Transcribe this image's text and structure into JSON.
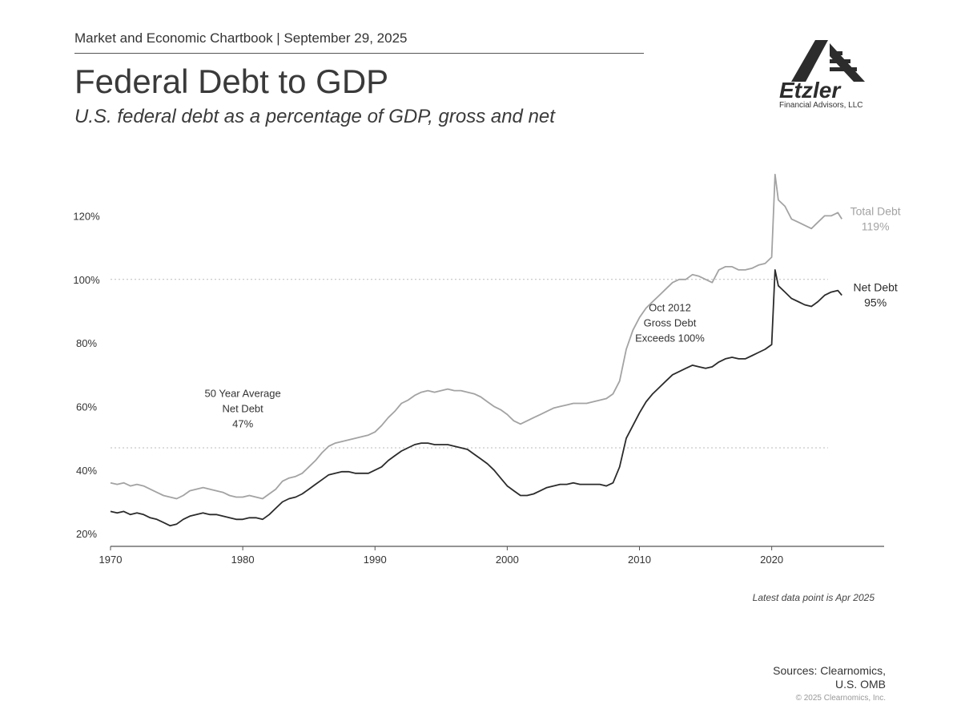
{
  "header": {
    "chartbook": "Market and Economic Chartbook | September 29, 2025",
    "title": "Federal Debt to GDP",
    "subtitle": "U.S. federal debt as a percentage of GDP, gross and net"
  },
  "logo": {
    "name": "Etzler",
    "sub": "Financial Advisors, LLC"
  },
  "footer": {
    "latest": "Latest data point is Apr 2025",
    "sources_line1": "Sources: Clearnomics,",
    "sources_line2": "U.S. OMB",
    "copyright": "© 2025 Clearnomics, Inc."
  },
  "colors": {
    "total": "#a3a3a3",
    "net": "#2b2b2b",
    "axis": "#555555",
    "ref": "#bbbbbb",
    "text": "#333333"
  },
  "chart_data": {
    "type": "line",
    "title": "Federal Debt to GDP",
    "xlim": [
      1970,
      2028.5
    ],
    "ylim": [
      16,
      138
    ],
    "x_ticks": [
      1970,
      1980,
      1990,
      2000,
      2010,
      2020
    ],
    "x_tick_labels": [
      "1970",
      "1980",
      "1990",
      "2000",
      "2010",
      "2020"
    ],
    "y_ticks": [
      20,
      40,
      60,
      80,
      100,
      120
    ],
    "y_tick_labels": [
      "20%",
      "40%",
      "60%",
      "80%",
      "100%",
      "120%"
    ],
    "reference_lines": [
      {
        "value": 100,
        "name": "100% reference"
      },
      {
        "value": 47,
        "name": "50 year average net debt"
      }
    ],
    "series": [
      {
        "name": "Total Debt",
        "color": "#a3a3a3",
        "label": "Total Debt",
        "value_label": "119%",
        "points": [
          [
            1970,
            36
          ],
          [
            1970.5,
            35.5
          ],
          [
            1971,
            36
          ],
          [
            1971.5,
            35
          ],
          [
            1972,
            35.5
          ],
          [
            1972.5,
            35
          ],
          [
            1973,
            34
          ],
          [
            1973.5,
            33
          ],
          [
            1974,
            32
          ],
          [
            1974.5,
            31.5
          ],
          [
            1975,
            31
          ],
          [
            1975.5,
            32
          ],
          [
            1976,
            33.5
          ],
          [
            1976.5,
            34
          ],
          [
            1977,
            34.5
          ],
          [
            1977.5,
            34
          ],
          [
            1978,
            33.5
          ],
          [
            1978.5,
            33
          ],
          [
            1979,
            32
          ],
          [
            1979.5,
            31.5
          ],
          [
            1980,
            31.5
          ],
          [
            1980.5,
            32
          ],
          [
            1981,
            31.5
          ],
          [
            1981.5,
            31
          ],
          [
            1982,
            32.5
          ],
          [
            1982.5,
            34
          ],
          [
            1983,
            36.5
          ],
          [
            1983.5,
            37.5
          ],
          [
            1984,
            38
          ],
          [
            1984.5,
            39
          ],
          [
            1985,
            41
          ],
          [
            1985.5,
            43
          ],
          [
            1986,
            45.5
          ],
          [
            1986.5,
            47.5
          ],
          [
            1987,
            48.5
          ],
          [
            1987.5,
            49
          ],
          [
            1988,
            49.5
          ],
          [
            1988.5,
            50
          ],
          [
            1989,
            50.5
          ],
          [
            1989.5,
            51
          ],
          [
            1990,
            52
          ],
          [
            1990.5,
            54
          ],
          [
            1991,
            56.5
          ],
          [
            1991.5,
            58.5
          ],
          [
            1992,
            61
          ],
          [
            1992.5,
            62
          ],
          [
            1993,
            63.5
          ],
          [
            1993.5,
            64.5
          ],
          [
            1994,
            65
          ],
          [
            1994.5,
            64.5
          ],
          [
            1995,
            65
          ],
          [
            1995.5,
            65.5
          ],
          [
            1996,
            65
          ],
          [
            1996.5,
            65
          ],
          [
            1997,
            64.5
          ],
          [
            1997.5,
            64
          ],
          [
            1998,
            63
          ],
          [
            1998.5,
            61.5
          ],
          [
            1999,
            60
          ],
          [
            1999.5,
            59
          ],
          [
            2000,
            57.5
          ],
          [
            2000.5,
            55.5
          ],
          [
            2001,
            54.5
          ],
          [
            2001.5,
            55.5
          ],
          [
            2002,
            56.5
          ],
          [
            2002.5,
            57.5
          ],
          [
            2003,
            58.5
          ],
          [
            2003.5,
            59.5
          ],
          [
            2004,
            60
          ],
          [
            2004.5,
            60.5
          ],
          [
            2005,
            61
          ],
          [
            2005.5,
            61
          ],
          [
            2006,
            61
          ],
          [
            2006.5,
            61.5
          ],
          [
            2007,
            62
          ],
          [
            2007.5,
            62.5
          ],
          [
            2008,
            64
          ],
          [
            2008.5,
            68
          ],
          [
            2009,
            78
          ],
          [
            2009.5,
            84
          ],
          [
            2010,
            88
          ],
          [
            2010.5,
            91
          ],
          [
            2011,
            93
          ],
          [
            2011.5,
            95
          ],
          [
            2012,
            97
          ],
          [
            2012.5,
            99
          ],
          [
            2013,
            100
          ],
          [
            2013.5,
            100
          ],
          [
            2014,
            101.5
          ],
          [
            2014.5,
            101
          ],
          [
            2015,
            100
          ],
          [
            2015.5,
            99
          ],
          [
            2016,
            103
          ],
          [
            2016.5,
            104
          ],
          [
            2017,
            104
          ],
          [
            2017.5,
            103
          ],
          [
            2018,
            103
          ],
          [
            2018.5,
            103.5
          ],
          [
            2019,
            104.5
          ],
          [
            2019.5,
            105
          ],
          [
            2020,
            107
          ],
          [
            2020.25,
            133
          ],
          [
            2020.5,
            125
          ],
          [
            2021,
            123
          ],
          [
            2021.5,
            119
          ],
          [
            2022,
            118
          ],
          [
            2022.5,
            117
          ],
          [
            2023,
            116
          ],
          [
            2023.5,
            118
          ],
          [
            2024,
            120
          ],
          [
            2024.5,
            120
          ],
          [
            2025,
            121
          ],
          [
            2025.3,
            119
          ]
        ]
      },
      {
        "name": "Net Debt",
        "color": "#2b2b2b",
        "label": "Net Debt",
        "value_label": "95%",
        "points": [
          [
            1970,
            27
          ],
          [
            1970.5,
            26.5
          ],
          [
            1971,
            27
          ],
          [
            1971.5,
            26
          ],
          [
            1972,
            26.5
          ],
          [
            1972.5,
            26
          ],
          [
            1973,
            25
          ],
          [
            1973.5,
            24.5
          ],
          [
            1974,
            23.5
          ],
          [
            1974.5,
            22.5
          ],
          [
            1975,
            23
          ],
          [
            1975.5,
            24.5
          ],
          [
            1976,
            25.5
          ],
          [
            1976.5,
            26
          ],
          [
            1977,
            26.5
          ],
          [
            1977.5,
            26
          ],
          [
            1978,
            26
          ],
          [
            1978.5,
            25.5
          ],
          [
            1979,
            25
          ],
          [
            1979.5,
            24.5
          ],
          [
            1980,
            24.5
          ],
          [
            1980.5,
            25
          ],
          [
            1981,
            25
          ],
          [
            1981.5,
            24.5
          ],
          [
            1982,
            26
          ],
          [
            1982.5,
            28
          ],
          [
            1983,
            30
          ],
          [
            1983.5,
            31
          ],
          [
            1984,
            31.5
          ],
          [
            1984.5,
            32.5
          ],
          [
            1985,
            34
          ],
          [
            1985.5,
            35.5
          ],
          [
            1986,
            37
          ],
          [
            1986.5,
            38.5
          ],
          [
            1987,
            39
          ],
          [
            1987.5,
            39.5
          ],
          [
            1988,
            39.5
          ],
          [
            1988.5,
            39
          ],
          [
            1989,
            39
          ],
          [
            1989.5,
            39
          ],
          [
            1990,
            40
          ],
          [
            1990.5,
            41
          ],
          [
            1991,
            43
          ],
          [
            1991.5,
            44.5
          ],
          [
            1992,
            46
          ],
          [
            1992.5,
            47
          ],
          [
            1993,
            48
          ],
          [
            1993.5,
            48.5
          ],
          [
            1994,
            48.5
          ],
          [
            1994.5,
            48
          ],
          [
            1995,
            48
          ],
          [
            1995.5,
            48
          ],
          [
            1996,
            47.5
          ],
          [
            1996.5,
            47
          ],
          [
            1997,
            46.5
          ],
          [
            1997.5,
            45
          ],
          [
            1998,
            43.5
          ],
          [
            1998.5,
            42
          ],
          [
            1999,
            40
          ],
          [
            1999.5,
            37.5
          ],
          [
            2000,
            35
          ],
          [
            2000.5,
            33.5
          ],
          [
            2001,
            32
          ],
          [
            2001.5,
            32
          ],
          [
            2002,
            32.5
          ],
          [
            2002.5,
            33.5
          ],
          [
            2003,
            34.5
          ],
          [
            2003.5,
            35
          ],
          [
            2004,
            35.5
          ],
          [
            2004.5,
            35.5
          ],
          [
            2005,
            36
          ],
          [
            2005.5,
            35.5
          ],
          [
            2006,
            35.5
          ],
          [
            2006.5,
            35.5
          ],
          [
            2007,
            35.5
          ],
          [
            2007.5,
            35
          ],
          [
            2008,
            36
          ],
          [
            2008.5,
            41
          ],
          [
            2009,
            50
          ],
          [
            2009.5,
            54
          ],
          [
            2010,
            58
          ],
          [
            2010.5,
            61.5
          ],
          [
            2011,
            64
          ],
          [
            2011.5,
            66
          ],
          [
            2012,
            68
          ],
          [
            2012.5,
            70
          ],
          [
            2013,
            71
          ],
          [
            2013.5,
            72
          ],
          [
            2014,
            73
          ],
          [
            2014.5,
            72.5
          ],
          [
            2015,
            72
          ],
          [
            2015.5,
            72.5
          ],
          [
            2016,
            74
          ],
          [
            2016.5,
            75
          ],
          [
            2017,
            75.5
          ],
          [
            2017.5,
            75
          ],
          [
            2018,
            75
          ],
          [
            2018.5,
            76
          ],
          [
            2019,
            77
          ],
          [
            2019.5,
            78
          ],
          [
            2020,
            79.5
          ],
          [
            2020.25,
            103
          ],
          [
            2020.5,
            98
          ],
          [
            2021,
            96
          ],
          [
            2021.5,
            94
          ],
          [
            2022,
            93
          ],
          [
            2022.5,
            92
          ],
          [
            2023,
            91.5
          ],
          [
            2023.5,
            93
          ],
          [
            2024,
            95
          ],
          [
            2024.5,
            96
          ],
          [
            2025,
            96.5
          ],
          [
            2025.3,
            95
          ]
        ]
      }
    ],
    "annotations": [
      {
        "name": "avg-annotation",
        "lines": [
          "50 Year Average",
          "Net Debt",
          "47%"
        ]
      },
      {
        "name": "oct2012-annotation",
        "lines": [
          "Oct 2012",
          "Gross Debt",
          "Exceeds 100%"
        ]
      }
    ]
  }
}
